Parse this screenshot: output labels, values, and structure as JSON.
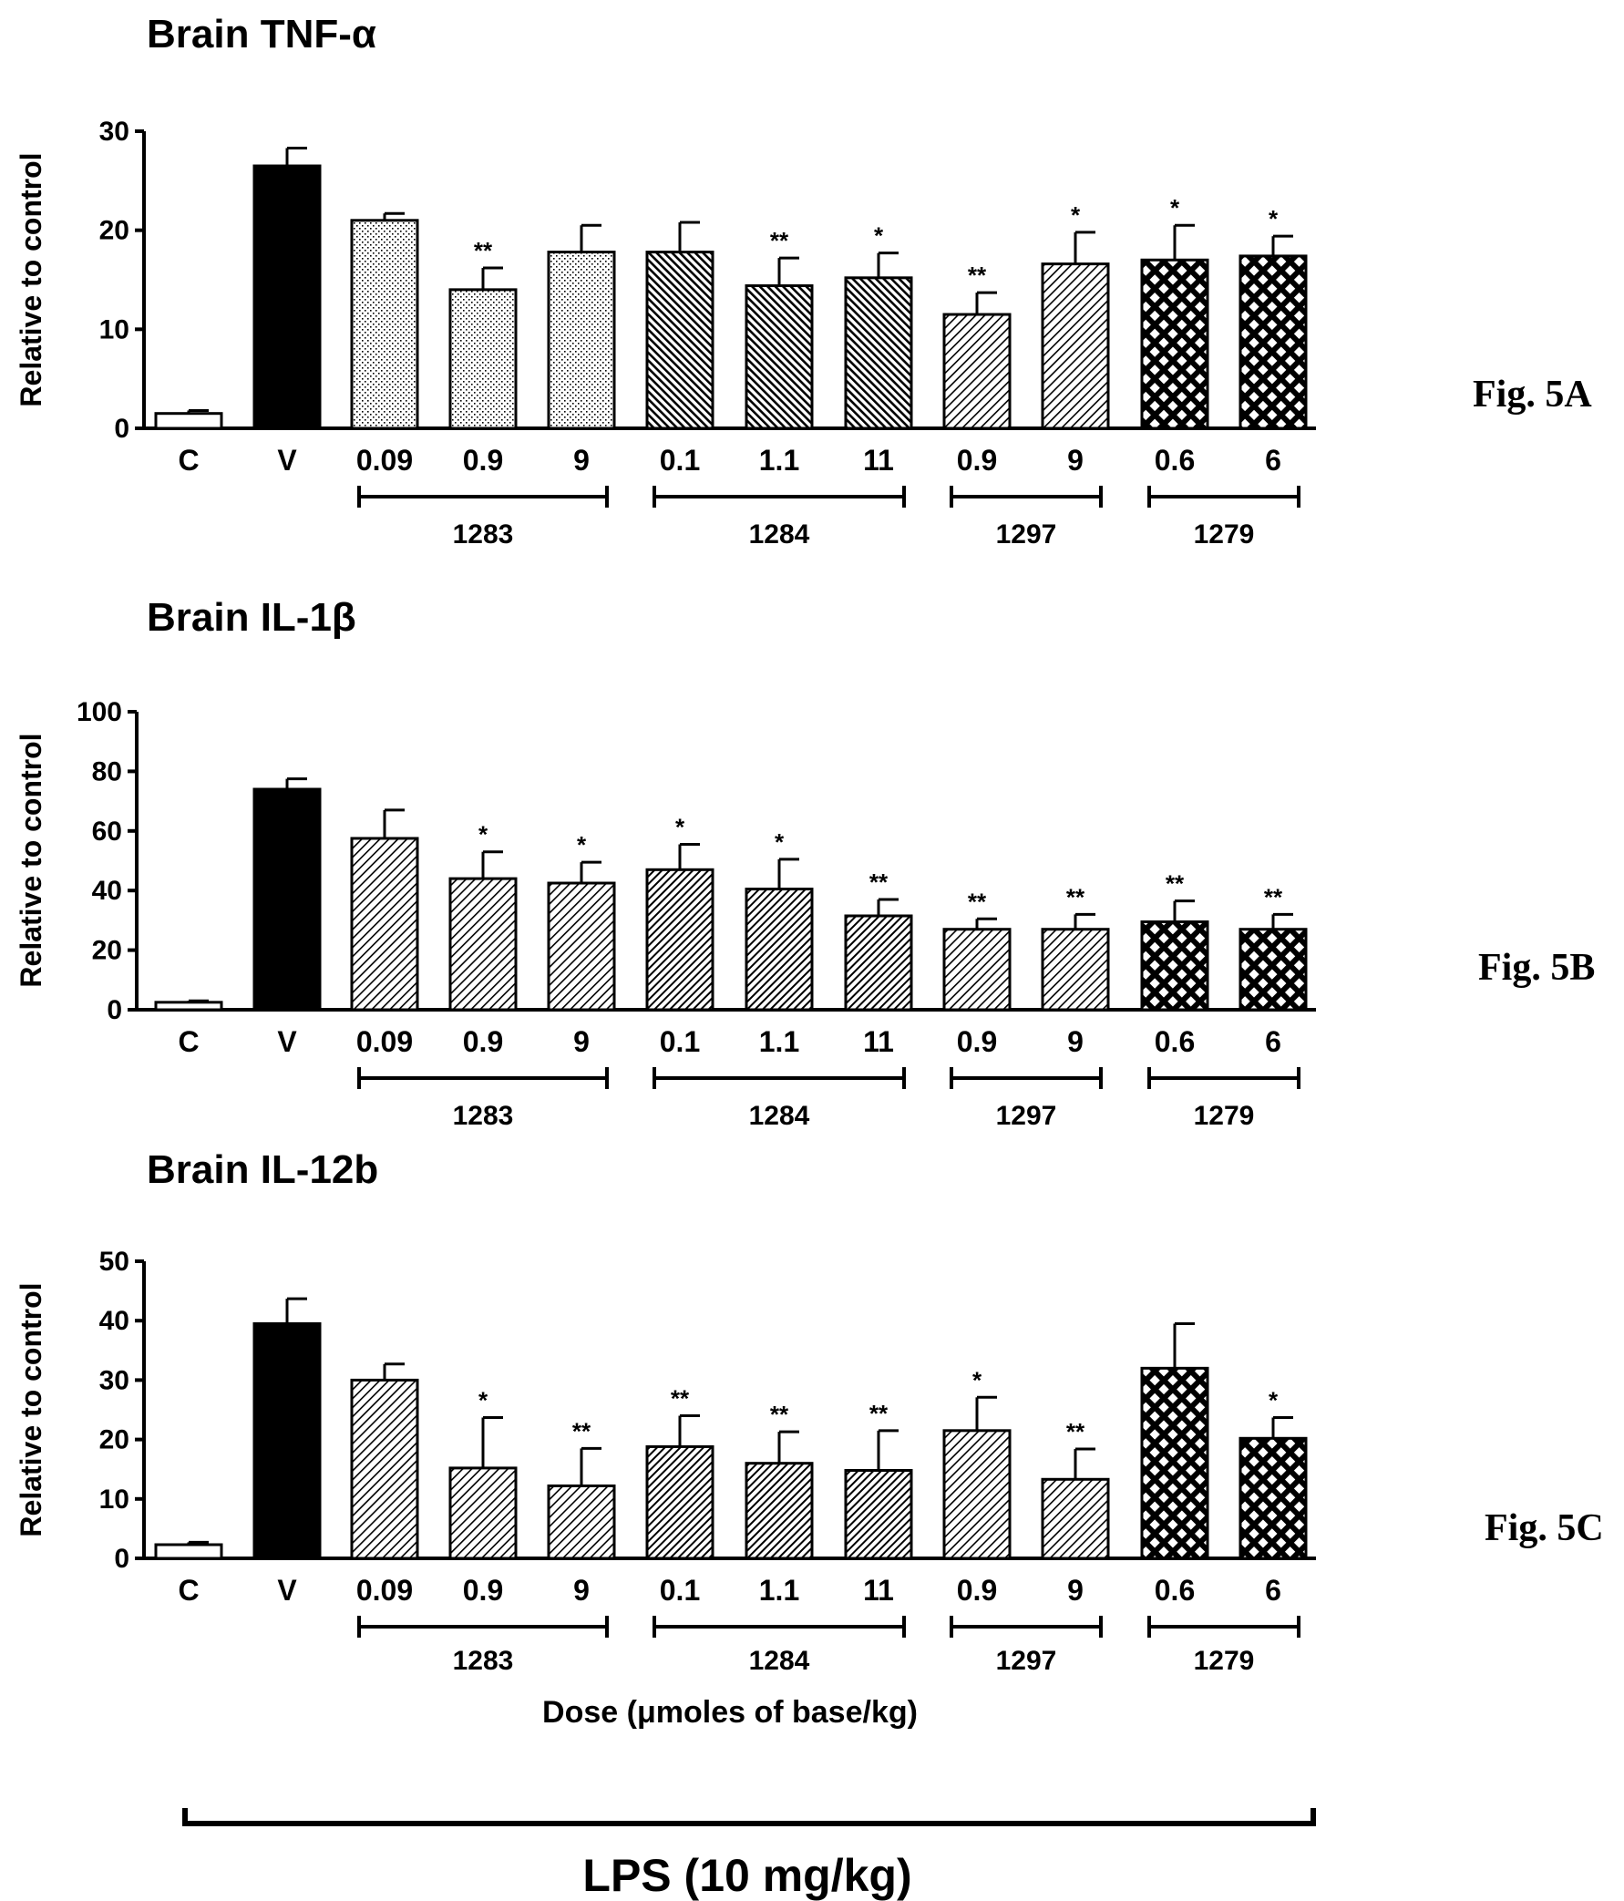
{
  "chart_data": [
    {
      "type": "bar",
      "title": "Brain TNF-α",
      "ylabel": "Relative to control",
      "ylim": [
        0,
        30
      ],
      "yticks": [
        "0",
        "10",
        "20",
        "30"
      ],
      "categories": [
        "C",
        "V",
        "0.09",
        "0.9",
        "9",
        "0.1",
        "1.1",
        "11",
        "0.9",
        "9",
        "0.6",
        "6"
      ],
      "values": [
        1.5,
        26.5,
        21,
        14,
        17.8,
        17.8,
        14.4,
        15.2,
        11.5,
        16.6,
        17,
        17.4
      ],
      "errors": [
        0.3,
        1.8,
        0.7,
        2.2,
        2.7,
        3.0,
        2.8,
        2.5,
        2.2,
        3.2,
        3.5,
        2.0
      ],
      "significance": [
        "",
        "",
        "",
        "**",
        "",
        "",
        "**",
        "*",
        "**",
        "*",
        "*",
        "*"
      ],
      "groups": [
        {
          "label": "1283",
          "from": 2,
          "to": 4
        },
        {
          "label": "1284",
          "from": 5,
          "to": 7
        },
        {
          "label": "1297",
          "from": 8,
          "to": 9
        },
        {
          "label": "1279",
          "from": 10,
          "to": 11
        }
      ],
      "figure_label": "Fig. 5A"
    },
    {
      "type": "bar",
      "title": "Brain IL-1β",
      "ylabel": "Relative to control",
      "ylim": [
        0,
        100
      ],
      "yticks": [
        "0",
        "20",
        "40",
        "60",
        "80",
        "100"
      ],
      "categories": [
        "C",
        "V",
        "0.09",
        "0.9",
        "9",
        "0.1",
        "1.1",
        "11",
        "0.9",
        "9",
        "0.6",
        "6"
      ],
      "values": [
        2.5,
        74,
        57.5,
        44,
        42.5,
        47,
        40.5,
        31.5,
        27,
        27,
        29.5,
        27
      ],
      "errors": [
        0.5,
        3.5,
        9.5,
        9.0,
        7.0,
        8.5,
        10.0,
        5.5,
        3.5,
        5.0,
        7.0,
        5.0
      ],
      "significance": [
        "",
        "",
        "",
        "*",
        "*",
        "*",
        "*",
        "**",
        "**",
        "**",
        "**",
        "**"
      ],
      "groups": [
        {
          "label": "1283",
          "from": 2,
          "to": 4
        },
        {
          "label": "1284",
          "from": 5,
          "to": 7
        },
        {
          "label": "1297",
          "from": 8,
          "to": 9
        },
        {
          "label": "1279",
          "from": 10,
          "to": 11
        }
      ],
      "figure_label": "Fig. 5B"
    },
    {
      "type": "bar",
      "title": "Brain IL-12b",
      "ylabel": "Relative to control",
      "ylim": [
        0,
        50
      ],
      "yticks": [
        "0",
        "10",
        "20",
        "30",
        "40",
        "50"
      ],
      "categories": [
        "C",
        "V",
        "0.09",
        "0.9",
        "9",
        "0.1",
        "1.1",
        "11",
        "0.9",
        "9",
        "0.6",
        "6"
      ],
      "values": [
        2.3,
        39.5,
        30,
        15.2,
        12.2,
        18.8,
        16,
        14.8,
        21.5,
        13.3,
        32,
        20.2
      ],
      "errors": [
        0.4,
        4.2,
        2.7,
        8.5,
        6.3,
        5.2,
        5.3,
        6.7,
        5.6,
        5.1,
        7.5,
        3.5
      ],
      "significance": [
        "",
        "",
        "",
        "*",
        "**",
        "**",
        "**",
        "**",
        "*",
        "**",
        "",
        "*"
      ],
      "groups": [
        {
          "label": "1283",
          "from": 2,
          "to": 4
        },
        {
          "label": "1284",
          "from": 5,
          "to": 7
        },
        {
          "label": "1297",
          "from": 8,
          "to": 9
        },
        {
          "label": "1279",
          "from": 10,
          "to": 11
        }
      ],
      "xlabel": "Dose (μmoles of base/kg)",
      "figure_label": "Fig. 5C"
    }
  ],
  "treatment_label": "LPS (10 mg/kg)",
  "colors": {
    "ink": "#000000",
    "background": "#ffffff"
  }
}
